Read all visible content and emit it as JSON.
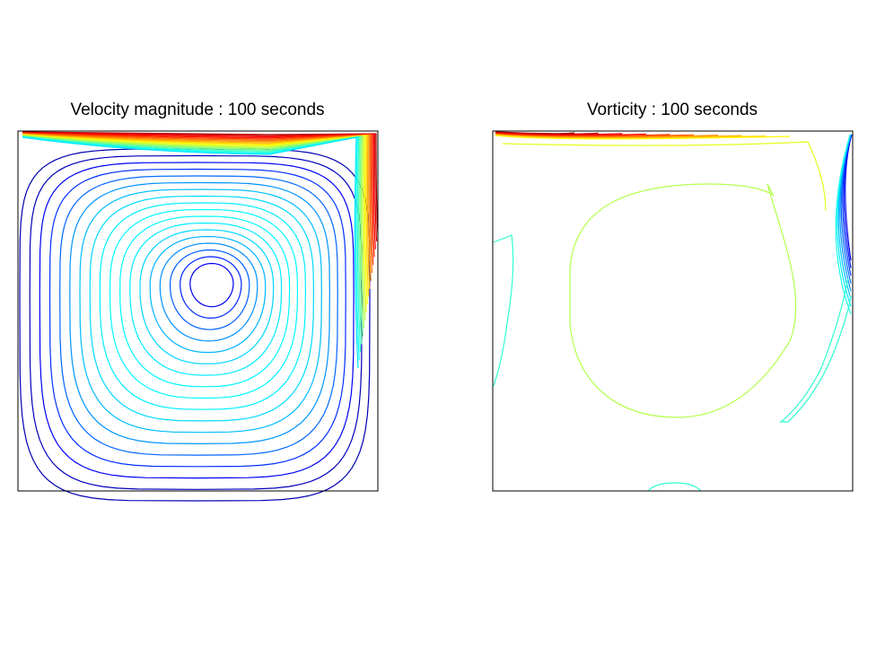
{
  "chart_data": [
    {
      "type": "contour",
      "title": "Velocity magnitude : 100 seconds",
      "quantity": "velocity magnitude",
      "time_seconds": 100,
      "colormap": "jet",
      "grid": false,
      "axes_ticks_shown": false,
      "contour_levels": 30
    },
    {
      "type": "contour",
      "title": "Vorticity : 100 seconds",
      "quantity": "vorticity",
      "time_seconds": 100,
      "colormap": "jet",
      "grid": false,
      "axes_ticks_shown": false,
      "contour_levels": 20
    }
  ]
}
